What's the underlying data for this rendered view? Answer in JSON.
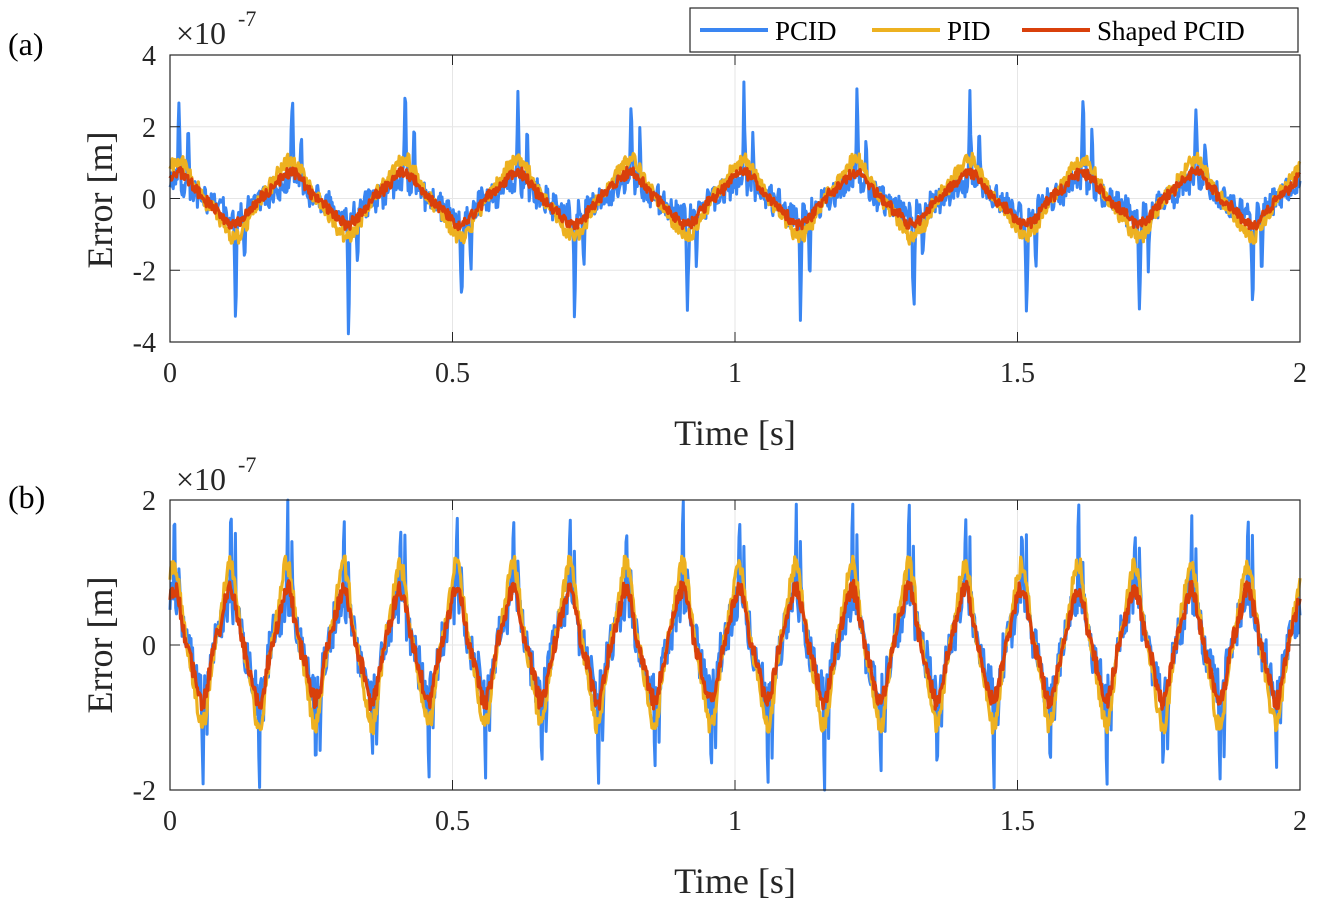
{
  "colors": {
    "pcid": "#3a86f2",
    "pid": "#edb120",
    "shaped": "#d9400b"
  },
  "legend": {
    "items": [
      "PCID",
      "PID",
      "Shaped PCID"
    ],
    "placement": "top-right"
  },
  "chart_data": [
    {
      "type": "line",
      "panel_label": "(a)",
      "xlabel": "Time [s]",
      "ylabel": "Error [m]",
      "multiplier_base": "×10",
      "multiplier_exp": "-7",
      "xlim": [
        0,
        2
      ],
      "ylim": [
        -4,
        4
      ],
      "xticks": [
        0,
        0.5,
        1,
        1.5,
        2
      ],
      "xtick_labels": [
        "0",
        "0.5",
        "1",
        "1.5",
        "2"
      ],
      "yticks": [
        -4,
        -2,
        0,
        2,
        4
      ],
      "ytick_labels": [
        "-4",
        "-2",
        "0",
        "2",
        "4"
      ],
      "grid": true,
      "series": [
        {
          "name": "PCID",
          "base_amp": 0.45,
          "base_period": 0.2,
          "spike_period": 0.2,
          "spike_pos": 3.2,
          "spike_neg": -3.6,
          "noise": 0.45
        },
        {
          "name": "PID",
          "base_amp": 0.95,
          "base_period": 0.2,
          "noise": 0.25
        },
        {
          "name": "Shaped PCID",
          "base_amp": 0.65,
          "base_period": 0.2,
          "noise": 0.18
        }
      ]
    },
    {
      "type": "line",
      "panel_label": "(b)",
      "xlabel": "Time [s]",
      "ylabel": "Error [m]",
      "multiplier_base": "×10",
      "multiplier_exp": "-7",
      "xlim": [
        0,
        2
      ],
      "ylim": [
        -2,
        2
      ],
      "xticks": [
        0,
        0.5,
        1,
        1.5,
        2
      ],
      "xtick_labels": [
        "0",
        "0.5",
        "1",
        "1.5",
        "2"
      ],
      "yticks": [
        -2,
        0,
        2
      ],
      "ytick_labels": [
        "-2",
        "0",
        "2"
      ],
      "grid": true,
      "series": [
        {
          "name": "PCID",
          "base_amp": 0.6,
          "base_period": 0.1,
          "spike_period": 0.1,
          "spike_pos": 1.95,
          "spike_neg": -1.95,
          "noise": 0.35
        },
        {
          "name": "PID",
          "base_amp": 1.0,
          "base_period": 0.1,
          "noise": 0.15
        },
        {
          "name": "Shaped PCID",
          "base_amp": 0.7,
          "base_period": 0.1,
          "noise": 0.15
        }
      ]
    }
  ]
}
